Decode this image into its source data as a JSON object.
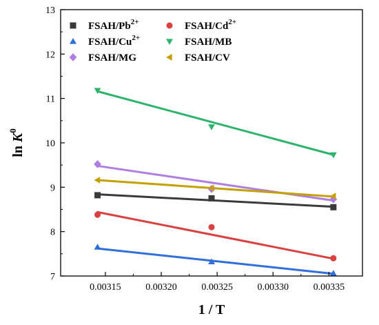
{
  "chart_data": {
    "type": "scatter",
    "xlabel": "1 / T",
    "ylabel_prefix": "ln ",
    "ylabel_var": "K",
    "ylabel_sup": "0",
    "xlim": [
      0.00311,
      0.00338
    ],
    "ylim": [
      7,
      13
    ],
    "xticks": [
      0.00315,
      0.0032,
      0.00325,
      0.0033,
      0.00335
    ],
    "xtick_labels": [
      "0.00315",
      "0.00320",
      "0.00325",
      "0.00330",
      "0.00335"
    ],
    "yticks": [
      7,
      8,
      9,
      10,
      11,
      12,
      13
    ],
    "ytick_labels": [
      "7",
      "8",
      "9",
      "10",
      "11",
      "12",
      "13"
    ],
    "grid": false,
    "legend_position": "top-left",
    "x": [
      0.003143,
      0.003245,
      0.003354
    ],
    "series": [
      {
        "name": "FSAH/Pb",
        "sup": "2+",
        "marker": "square",
        "color": "#3a3a3a",
        "values": [
          8.82,
          8.75,
          8.55
        ],
        "fit": [
          8.84,
          8.56
        ]
      },
      {
        "name": "FSAH/Cd",
        "sup": "2+",
        "marker": "circle",
        "color": "#d94040",
        "values": [
          8.38,
          8.1,
          7.4
        ],
        "fit": [
          8.44,
          7.39
        ]
      },
      {
        "name": "FSAH/Cu",
        "sup": "2+",
        "marker": "triangle-up",
        "color": "#2f6fdb",
        "values": [
          7.65,
          7.32,
          7.06
        ],
        "fit": [
          7.62,
          7.05
        ]
      },
      {
        "name": "FSAH/MB",
        "sup": "",
        "marker": "triangle-down",
        "color": "#2db36b",
        "values": [
          11.18,
          10.36,
          9.73
        ],
        "fit": [
          11.16,
          9.73
        ]
      },
      {
        "name": "FSAH/MG",
        "sup": "",
        "marker": "diamond",
        "color": "#b07ee0",
        "values": [
          9.52,
          8.96,
          8.73
        ],
        "fit": [
          9.48,
          8.7
        ]
      },
      {
        "name": "FSAH/CV",
        "sup": "",
        "marker": "triangle-left",
        "color": "#c4a000",
        "values": [
          9.16,
          8.98,
          8.8
        ],
        "fit": [
          9.16,
          8.79
        ]
      }
    ]
  }
}
